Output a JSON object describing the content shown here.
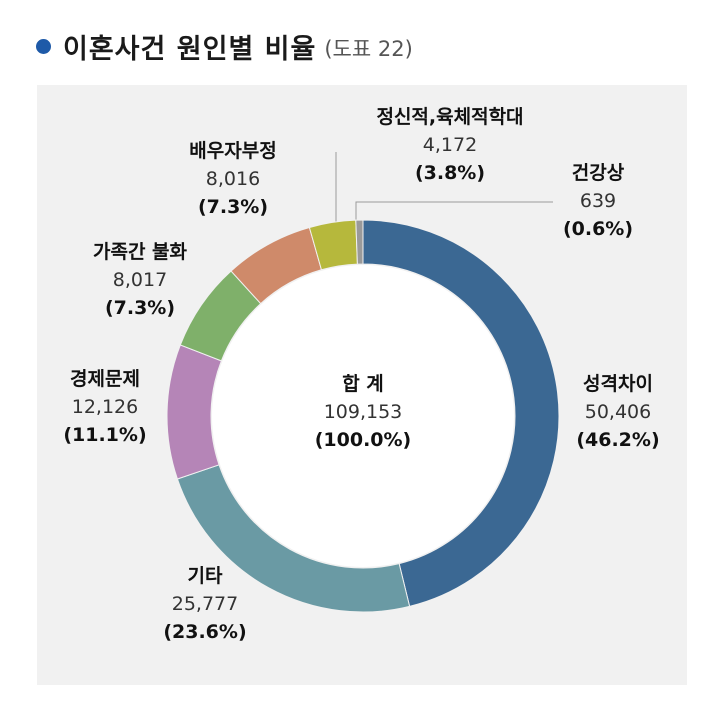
{
  "header": {
    "title": "이혼사건 원인별 비율",
    "subtitle": "(도표 22)"
  },
  "colors": {
    "bullet": "#1e5aa8",
    "panel": "#f1f1f1"
  },
  "chart_data": {
    "type": "pie",
    "variant": "donut",
    "title": "이혼사건 원인별 비율",
    "center": {
      "label": "합 계",
      "value": "109,153",
      "percent": "(100.0%)"
    },
    "slices": [
      {
        "name": "성격차이",
        "value": 50406,
        "value_text": "50,406",
        "percent_text": "(46.2%)",
        "color": "#3b6893"
      },
      {
        "name": "기타",
        "value": 25777,
        "value_text": "25,777",
        "percent_text": "(23.6%)",
        "color": "#6a9aa4"
      },
      {
        "name": "경제문제",
        "value": 12126,
        "value_text": "12,126",
        "percent_text": "(11.1%)",
        "color": "#b585b7"
      },
      {
        "name": "가족간 불화",
        "value": 8017,
        "value_text": "8,017",
        "percent_text": "(7.3%)",
        "color": "#7fb06a"
      },
      {
        "name": "배우자부정",
        "value": 8016,
        "value_text": "8,016",
        "percent_text": "(7.3%)",
        "color": "#cf8a6a"
      },
      {
        "name": "정신적,육체적학대",
        "value": 4172,
        "value_text": "4,172",
        "percent_text": "(3.8%)",
        "color": "#b6b83c"
      },
      {
        "name": "건강상",
        "value": 639,
        "value_text": "639",
        "percent_text": "(0.6%)",
        "color": "#9a9a9a"
      }
    ]
  }
}
